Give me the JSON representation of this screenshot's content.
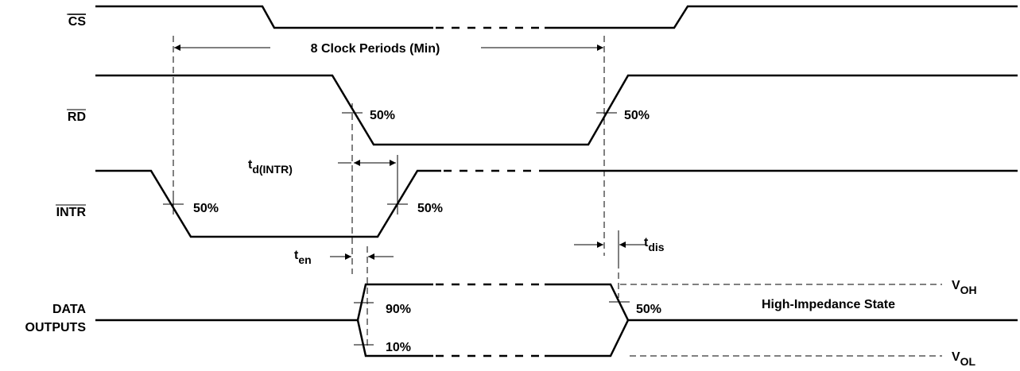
{
  "signals": {
    "cs": "CS",
    "rd": "RD",
    "intr": "INTR",
    "data": [
      "DATA",
      "OUTPUTS"
    ]
  },
  "span_label": "8 Clock Periods (Min)",
  "levels": {
    "rd_fall": "50%",
    "rd_rise": "50%",
    "intr_fall": "50%",
    "intr_rise": "50%",
    "data_high": "90%",
    "data_low": "10%",
    "data_off": "50%"
  },
  "timings": {
    "td": {
      "main": "t",
      "sub": "d(INTR)"
    },
    "ten": {
      "main": "t",
      "sub": "en"
    },
    "tdis": {
      "main": "t",
      "sub": "dis"
    }
  },
  "voh": {
    "main": "V",
    "sub": "OH"
  },
  "vol": {
    "main": "V",
    "sub": "OL"
  },
  "state": "High-Impedance State"
}
